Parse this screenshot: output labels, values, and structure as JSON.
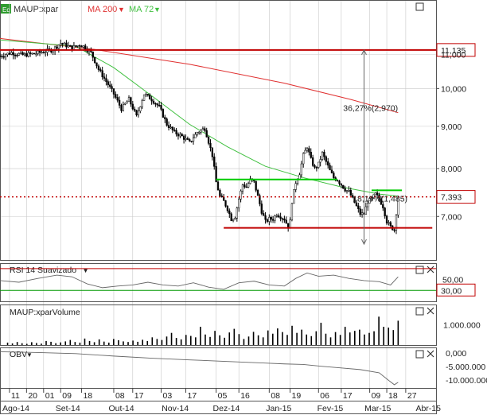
{
  "header": {
    "badge": "Eq",
    "symbol": "MAUP:xpar",
    "ma_slow_label": "MA 200",
    "ma_fast_label": "MA 72"
  },
  "colors": {
    "candle_up": "#ffffff",
    "candle_down": "#000000",
    "ma_slow": "#e03030",
    "ma_fast": "#40c040",
    "level_line": "#c00000",
    "support_resist": "#00cc00",
    "price_tag": "#c00000",
    "grid": "#c8c8c8",
    "badge_bg": "#2e9b2e"
  },
  "chart_data": [
    {
      "panel": "price",
      "type": "candlestick",
      "y_scale": "log",
      "ylim": [
        6200,
        12800
      ],
      "y_ticks": [
        {
          "value": 7000,
          "label": "7,000"
        },
        {
          "value": 8000,
          "label": "8,000"
        },
        {
          "value": 9000,
          "label": "9,000"
        },
        {
          "value": 10000,
          "label": "10,000"
        },
        {
          "value": 11000,
          "label": "11,000"
        }
      ],
      "close_path": [
        [
          0,
          10950
        ],
        [
          6,
          11050
        ],
        [
          12,
          10980
        ],
        [
          18,
          11020
        ],
        [
          23,
          11080
        ],
        [
          28,
          11150
        ],
        [
          32,
          11350
        ],
        [
          38,
          11200
        ],
        [
          42,
          11300
        ],
        [
          44,
          11250
        ],
        [
          48,
          11050
        ],
        [
          52,
          10550
        ],
        [
          56,
          10200
        ],
        [
          60,
          9850
        ],
        [
          64,
          9450
        ],
        [
          68,
          9700
        ],
        [
          72,
          9250
        ],
        [
          76,
          9850
        ],
        [
          80,
          9700
        ],
        [
          84,
          9500
        ],
        [
          88,
          9050
        ],
        [
          92,
          8850
        ],
        [
          96,
          8750
        ],
        [
          100,
          8600
        ],
        [
          104,
          8850
        ],
        [
          108,
          8950
        ],
        [
          112,
          8300
        ],
        [
          114,
          7700
        ],
        [
          116,
          7400
        ],
        [
          118,
          7300
        ],
        [
          120,
          7150
        ],
        [
          122,
          6950
        ],
        [
          124,
          7000
        ],
        [
          126,
          7350
        ],
        [
          128,
          7650
        ],
        [
          130,
          7600
        ],
        [
          132,
          7750
        ],
        [
          134,
          7700
        ],
        [
          136,
          7400
        ],
        [
          138,
          7100
        ],
        [
          140,
          6900
        ],
        [
          142,
          6950
        ],
        [
          144,
          6950
        ],
        [
          146,
          7050
        ],
        [
          148,
          7000
        ],
        [
          150,
          6950
        ],
        [
          152,
          6800
        ],
        [
          153,
          6900
        ],
        [
          154,
          7300
        ],
        [
          156,
          7700
        ],
        [
          158,
          7900
        ],
        [
          160,
          8300
        ],
        [
          162,
          8500
        ],
        [
          164,
          8200
        ],
        [
          166,
          8000
        ],
        [
          168,
          8100
        ],
        [
          170,
          8350
        ],
        [
          172,
          8150
        ],
        [
          174,
          7950
        ],
        [
          176,
          7800
        ],
        [
          178,
          7750
        ],
        [
          180,
          7650
        ],
        [
          182,
          7550
        ],
        [
          184,
          7500
        ],
        [
          186,
          7350
        ],
        [
          188,
          7200
        ],
        [
          190,
          7050
        ],
        [
          192,
          7050
        ],
        [
          194,
          7300
        ],
        [
          196,
          7350
        ],
        [
          198,
          7450
        ],
        [
          200,
          7350
        ],
        [
          202,
          7200
        ],
        [
          204,
          6900
        ],
        [
          206,
          6800
        ],
        [
          208,
          6750
        ],
        [
          210,
          7393
        ]
      ],
      "ma_200": [
        [
          0,
          11500
        ],
        [
          50,
          11150
        ],
        [
          100,
          10700
        ],
        [
          150,
          10150
        ],
        [
          185,
          9700
        ],
        [
          210,
          9350
        ]
      ],
      "ma_72": [
        [
          0,
          11450
        ],
        [
          40,
          11250
        ],
        [
          60,
          10600
        ],
        [
          80,
          9800
        ],
        [
          100,
          9050
        ],
        [
          120,
          8500
        ],
        [
          140,
          8050
        ],
        [
          160,
          7800
        ],
        [
          180,
          7600
        ],
        [
          200,
          7450
        ],
        [
          210,
          7410
        ]
      ],
      "horizontal_levels": [
        {
          "value": 11135,
          "label": "11,135",
          "style": "solid",
          "color": "#c00000"
        },
        {
          "value": 7393,
          "label": "7,393",
          "style": "dotted",
          "color": "#c00000"
        },
        {
          "value": 6780,
          "label": "",
          "style": "solid-segment",
          "color": "#c00000",
          "x_from": 118,
          "x_to": 228
        },
        {
          "value": 7760,
          "label": "",
          "style": "solid-segment",
          "color": "#00cc00",
          "x_from": 114,
          "x_to": 178
        },
        {
          "value": 7530,
          "label": "",
          "style": "solid-segment",
          "color": "#00cc00",
          "x_from": 196,
          "x_to": 212
        }
      ],
      "annotations": [
        {
          "text": "36,27%(2,970)",
          "x": 181,
          "y": 9400
        },
        {
          "text": "18,19%(1,485)",
          "x": 186,
          "y": 7300
        }
      ],
      "measure_arrow": {
        "x": 192,
        "y_top": 11135,
        "y_bottom": 6480
      }
    },
    {
      "panel": "rsi",
      "type": "line",
      "title": "RSI 14 Suavizado",
      "ylim": [
        10,
        80
      ],
      "levels": [
        {
          "value": 70,
          "label": "",
          "color": "#c00000"
        },
        {
          "value": 30,
          "label": "30,00",
          "color": "#009900"
        }
      ],
      "y_ticks": [
        {
          "value": 50,
          "label": "50,00"
        }
      ],
      "values_path": [
        [
          0,
          48
        ],
        [
          10,
          45
        ],
        [
          20,
          52
        ],
        [
          30,
          58
        ],
        [
          38,
          55
        ],
        [
          46,
          42
        ],
        [
          54,
          35
        ],
        [
          62,
          38
        ],
        [
          70,
          40
        ],
        [
          78,
          45
        ],
        [
          86,
          40
        ],
        [
          94,
          38
        ],
        [
          102,
          44
        ],
        [
          110,
          36
        ],
        [
          118,
          32
        ],
        [
          126,
          44
        ],
        [
          134,
          47
        ],
        [
          142,
          40
        ],
        [
          150,
          38
        ],
        [
          156,
          52
        ],
        [
          162,
          62
        ],
        [
          168,
          56
        ],
        [
          176,
          58
        ],
        [
          184,
          52
        ],
        [
          192,
          48
        ],
        [
          200,
          46
        ],
        [
          206,
          40
        ],
        [
          210,
          55
        ]
      ]
    },
    {
      "panel": "volume",
      "type": "bar",
      "title": "MAUP:xparVolume",
      "ylim": [
        0,
        2000000
      ],
      "y_ticks": [
        {
          "value": 1000000,
          "label": "1.000.000"
        }
      ],
      "values": [
        120000,
        80000,
        150000,
        90000,
        60000,
        140000,
        100000,
        70000,
        200000,
        160000,
        90000,
        130000,
        180000,
        250000,
        150000,
        120000,
        320000,
        200000,
        140000,
        280000,
        170000,
        120000,
        300000,
        240000,
        180000,
        150000,
        220000,
        160000,
        260000,
        200000,
        380000,
        300000,
        250000,
        420000,
        600000,
        350000,
        280000,
        500000,
        450000,
        380000,
        900000,
        520000,
        400000,
        700000,
        480000,
        360000,
        620000,
        800000,
        540000,
        300000,
        420000,
        650000,
        480000,
        380000,
        720000,
        560000,
        820000,
        640000,
        500000,
        950000,
        600000,
        760000,
        520000,
        440000,
        680000,
        1100000,
        560000,
        380000,
        640000,
        500000,
        900000,
        620000,
        700000,
        760000,
        520000,
        600000,
        680000,
        1400000,
        900000,
        860000,
        740000,
        1200000
      ]
    },
    {
      "panel": "obv",
      "type": "line",
      "title": "OBV",
      "ylim": [
        -13000000,
        2000000
      ],
      "y_ticks": [
        {
          "value": 0,
          "label": "0,000"
        },
        {
          "value": -5000000,
          "label": "-5.000.000"
        },
        {
          "value": -10000000,
          "label": "-10.000.000"
        }
      ],
      "values_path": [
        [
          0,
          400000
        ],
        [
          20,
          100000
        ],
        [
          40,
          -300000
        ],
        [
          60,
          -1200000
        ],
        [
          80,
          -2000000
        ],
        [
          100,
          -2600000
        ],
        [
          120,
          -3200000
        ],
        [
          140,
          -3800000
        ],
        [
          150,
          -4100000
        ],
        [
          160,
          -4300000
        ],
        [
          170,
          -5000000
        ],
        [
          180,
          -5600000
        ],
        [
          190,
          -6200000
        ],
        [
          200,
          -7400000
        ],
        [
          205,
          -10200000
        ],
        [
          208,
          -11800000
        ],
        [
          210,
          -10900000
        ]
      ]
    }
  ],
  "time_axis": {
    "day_ticks": [
      {
        "label": "11",
        "x": 5
      },
      {
        "label": "20",
        "x": 14
      },
      {
        "label": "01",
        "x": 23
      },
      {
        "label": "09",
        "x": 32
      },
      {
        "label": "18",
        "x": 43
      },
      {
        "label": "08",
        "x": 60
      },
      {
        "label": "17",
        "x": 70
      },
      {
        "label": "03",
        "x": 85
      },
      {
        "label": "17",
        "x": 98
      },
      {
        "label": "05",
        "x": 114
      },
      {
        "label": "16",
        "x": 126
      },
      {
        "label": "08",
        "x": 142
      },
      {
        "label": "19",
        "x": 153
      },
      {
        "label": "06",
        "x": 168
      },
      {
        "label": "17",
        "x": 180
      },
      {
        "label": "09",
        "x": 195
      },
      {
        "label": "18",
        "x": 204
      },
      {
        "label": "27",
        "x": 214
      }
    ],
    "month_labels": [
      {
        "label": "Ago-14",
        "x": 8
      },
      {
        "label": "Set-14",
        "x": 36
      },
      {
        "label": "Out-14",
        "x": 64
      },
      {
        "label": "Nov-14",
        "x": 92
      },
      {
        "label": "Dez-14",
        "x": 119
      },
      {
        "label": "Jan-15",
        "x": 147
      },
      {
        "label": "Fev-15",
        "x": 174
      },
      {
        "label": "Mar-15",
        "x": 199
      },
      {
        "label": "Abr-15",
        "x": 226
      }
    ]
  }
}
